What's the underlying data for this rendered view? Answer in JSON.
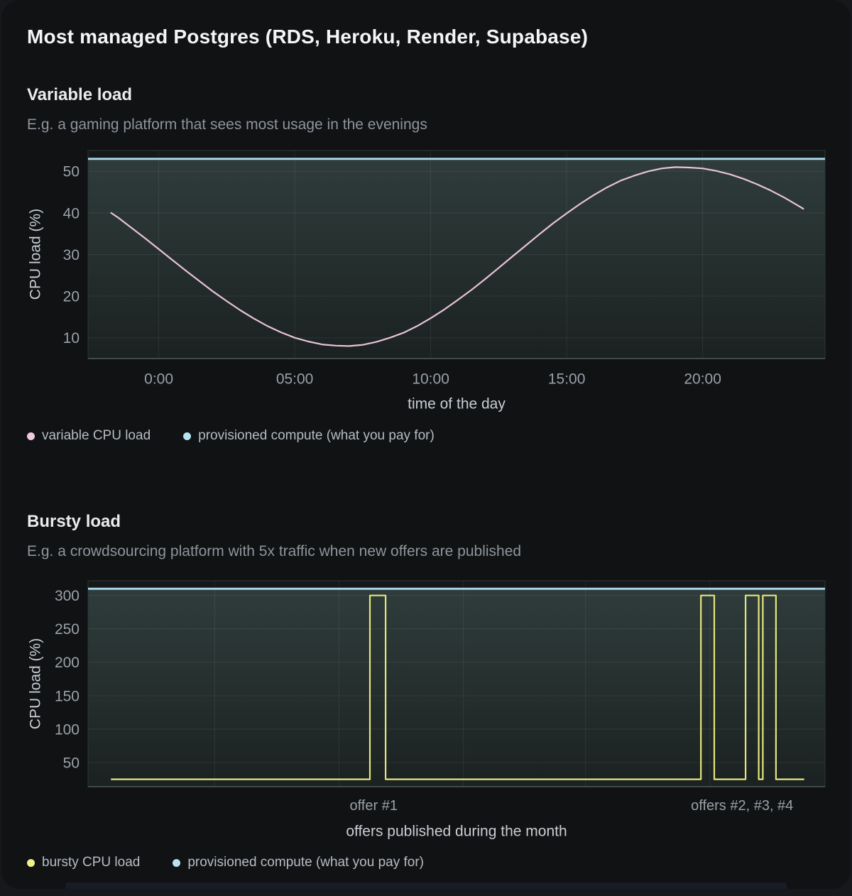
{
  "main_title": "Most managed Postgres (RDS, Heroku, Render, Supabase)",
  "chart_data": [
    {
      "type": "line",
      "title": "Variable load",
      "subtitle": "E.g. a gaming platform that sees most usage in the evenings",
      "xlabel": "time of the day",
      "ylabel": "CPU load (%)",
      "x_range": [
        -2.6,
        24.5
      ],
      "y_range": [
        5,
        55
      ],
      "x_ticks": [
        {
          "v": 0,
          "label": "0:00"
        },
        {
          "v": 5,
          "label": "05:00"
        },
        {
          "v": 10,
          "label": "10:00"
        },
        {
          "v": 15,
          "label": "15:00"
        },
        {
          "v": 20,
          "label": "20:00"
        }
      ],
      "y_ticks": [
        10,
        20,
        30,
        40,
        50
      ],
      "grid": "both",
      "grid_x": [
        0,
        5,
        10,
        15,
        20
      ],
      "annotations": [],
      "series": [
        {
          "name": "provisioned compute (what you pay for)",
          "kind": "hline",
          "value": 53,
          "color": "#a6d6e7",
          "area_fill": true
        },
        {
          "name": "variable CPU load",
          "kind": "line",
          "color": "#e9c3d8",
          "points": [
            [
              -1.75,
              40
            ],
            [
              -1.5,
              38.9
            ],
            [
              -1,
              36.4
            ],
            [
              -0.5,
              33.9
            ],
            [
              0,
              31.3
            ],
            [
              0.5,
              28.7
            ],
            [
              1,
              26.1
            ],
            [
              1.5,
              23.6
            ],
            [
              2,
              21.1
            ],
            [
              2.5,
              18.8
            ],
            [
              3,
              16.6
            ],
            [
              3.5,
              14.6
            ],
            [
              4,
              12.8
            ],
            [
              4.5,
              11.3
            ],
            [
              5,
              10
            ],
            [
              5.5,
              9.1
            ],
            [
              6,
              8.4
            ],
            [
              6.5,
              8.1
            ],
            [
              7,
              8
            ],
            [
              7.5,
              8.3
            ],
            [
              8,
              9
            ],
            [
              8.5,
              10
            ],
            [
              9,
              11.2
            ],
            [
              9.5,
              12.8
            ],
            [
              10,
              14.7
            ],
            [
              10.5,
              16.8
            ],
            [
              11,
              19.1
            ],
            [
              11.5,
              21.5
            ],
            [
              12,
              24.1
            ],
            [
              12.5,
              26.8
            ],
            [
              13,
              29.5
            ],
            [
              13.5,
              32.2
            ],
            [
              14,
              34.9
            ],
            [
              14.5,
              37.5
            ],
            [
              15,
              39.9
            ],
            [
              15.5,
              42.2
            ],
            [
              16,
              44.3
            ],
            [
              16.5,
              46.2
            ],
            [
              17,
              47.8
            ],
            [
              17.5,
              49
            ],
            [
              18,
              50
            ],
            [
              18.5,
              50.7
            ],
            [
              19,
              51
            ],
            [
              19.5,
              50.9
            ],
            [
              20,
              50.7
            ],
            [
              20.5,
              50.1
            ],
            [
              21,
              49.3
            ],
            [
              21.5,
              48.2
            ],
            [
              22,
              46.9
            ],
            [
              22.5,
              45.4
            ],
            [
              23,
              43.7
            ],
            [
              23.5,
              41.8
            ],
            [
              23.7,
              41
            ]
          ]
        }
      ],
      "legend": [
        {
          "label": "variable CPU load",
          "color": "#f2c8de"
        },
        {
          "label": "provisioned compute (what you pay for)",
          "color": "#b8e2f0"
        }
      ],
      "legend_position": "bottom-left"
    },
    {
      "type": "line",
      "title": "Bursty load",
      "subtitle": "E.g. a crowdsourcing platform with 5x traffic when new offers are published",
      "xlabel": "offers published during the month",
      "ylabel": "CPU load (%)",
      "x_range": [
        0,
        32
      ],
      "y_range": [
        14,
        322
      ],
      "x_ticks": [],
      "y_ticks": [
        50,
        100,
        150,
        200,
        250,
        300
      ],
      "grid": "both",
      "grid_x": [
        5.5,
        10.9,
        16.3,
        21.6,
        27.0
      ],
      "annotations": [
        {
          "x": 12.4,
          "label": "offer #1"
        },
        {
          "x": 28.4,
          "label": "offers #2, #3, #4"
        }
      ],
      "series": [
        {
          "name": "provisioned compute (what you pay for)",
          "kind": "hline",
          "value": 310,
          "color": "#a6d6e7",
          "area_fill": true
        },
        {
          "name": "bursty CPU load",
          "kind": "step",
          "color": "#e5e67b",
          "baseline": 25,
          "burst_value": 300,
          "points": [
            [
              1.02,
              25
            ],
            [
              12.24,
              25
            ],
            [
              12.24,
              300
            ],
            [
              12.92,
              300
            ],
            [
              12.92,
              25
            ],
            [
              26.61,
              25
            ],
            [
              26.61,
              300
            ],
            [
              27.19,
              300
            ],
            [
              27.19,
              25
            ],
            [
              28.55,
              25
            ],
            [
              28.55,
              300
            ],
            [
              29.12,
              300
            ],
            [
              29.12,
              25
            ],
            [
              29.3,
              25
            ],
            [
              29.3,
              300
            ],
            [
              29.87,
              300
            ],
            [
              29.87,
              25
            ],
            [
              31.07,
              25
            ]
          ]
        }
      ],
      "legend": [
        {
          "label": "bursty CPU load",
          "color": "#eff08d"
        },
        {
          "label": "provisioned compute (what you pay for)",
          "color": "#b8e2f0"
        }
      ],
      "legend_position": "bottom-left"
    }
  ],
  "theme": {
    "card_bg": "#101214",
    "plot_bg": "#141818",
    "area_gradient_top": "#2f3c3b",
    "area_gradient_bottom": "#1b2121",
    "grid_color": "rgba(255,255,255,0.07)",
    "tick_color": "#9aa1a8",
    "axis_label_color": "#c9ced3"
  }
}
